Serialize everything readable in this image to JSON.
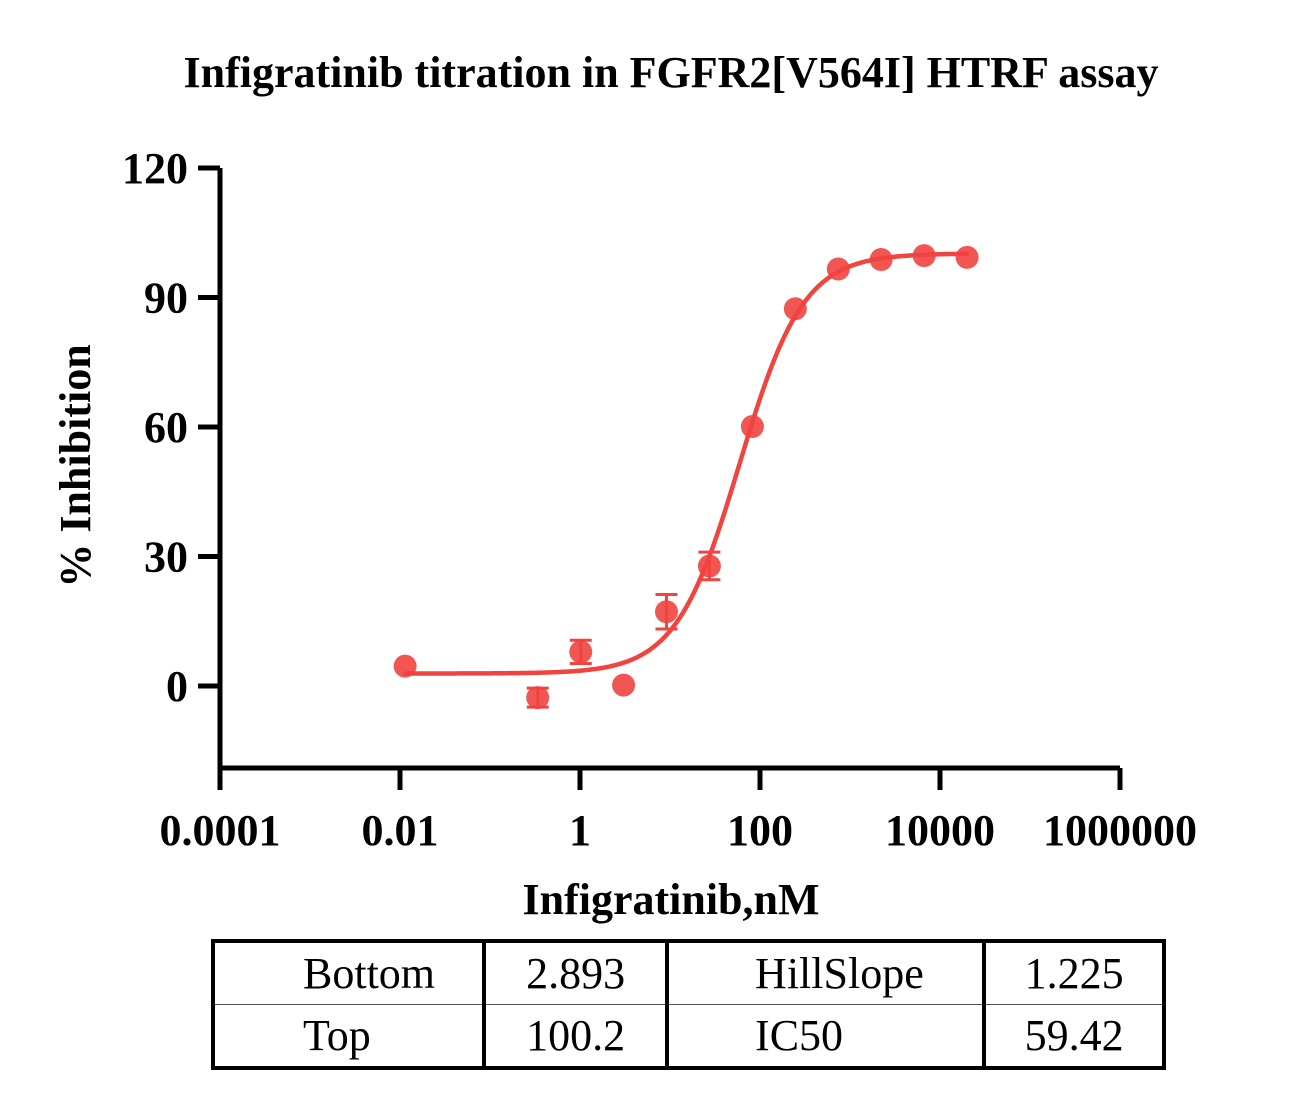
{
  "chart_data": {
    "type": "scatter",
    "title": "Infigratinib titration in FGFR2[V564I] HTRF assay",
    "xlabel": "Infigratinib,nM",
    "ylabel": "% Inhibition",
    "xscale": "log",
    "xlim": [
      0.0001,
      1000000
    ],
    "ylim": [
      -19,
      120
    ],
    "xticks": [
      0.0001,
      0.01,
      1,
      100,
      10000,
      1000000
    ],
    "xtick_labels": [
      "0.0001",
      "0.01",
      "1",
      "100",
      "10000",
      "1000000"
    ],
    "yticks": [
      0,
      30,
      60,
      90,
      120
    ],
    "ytick_labels": [
      "0",
      "30",
      "60",
      "90",
      "120"
    ],
    "grid": false,
    "legend": "none",
    "series": [
      {
        "color": "#f0443f",
        "points": [
          {
            "x": 0.0114,
            "y": 4.6,
            "err": 0
          },
          {
            "x": 0.339,
            "y": -2.7,
            "err": 2.2
          },
          {
            "x": 1.02,
            "y": 7.9,
            "err": 2.7
          },
          {
            "x": 3.05,
            "y": 0.2,
            "err": 0
          },
          {
            "x": 9.14,
            "y": 17.2,
            "err": 4.0
          },
          {
            "x": 27.4,
            "y": 27.8,
            "err": 3.2
          },
          {
            "x": 82.3,
            "y": 60.1,
            "err": 0
          },
          {
            "x": 247,
            "y": 87.4,
            "err": 0
          },
          {
            "x": 741,
            "y": 96.6,
            "err": 0
          },
          {
            "x": 2220,
            "y": 98.8,
            "err": 0
          },
          {
            "x": 6670,
            "y": 99.7,
            "err": 0
          },
          {
            "x": 20000,
            "y": 99.3,
            "err": 0
          }
        ],
        "fit": {
          "model": "four-parameter logistic",
          "bottom": 2.893,
          "top": 100.2,
          "ic50": 59.42,
          "hill_slope": 1.225,
          "x_range": [
            0.0114,
            20000
          ]
        }
      }
    ]
  },
  "params_table": {
    "rows": [
      [
        "Bottom",
        "2.893",
        "HillSlope",
        "1.225"
      ],
      [
        "Top",
        "100.2",
        "IC50",
        "59.42"
      ]
    ]
  }
}
